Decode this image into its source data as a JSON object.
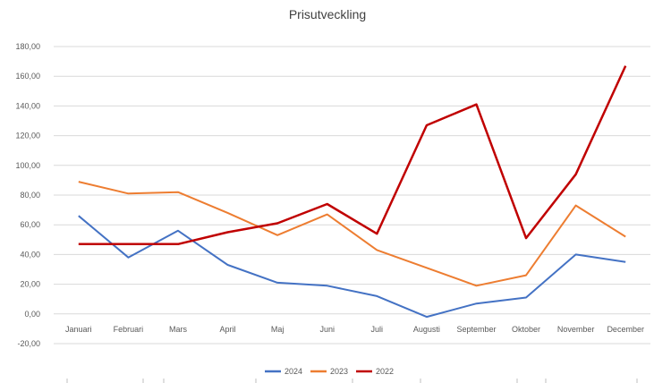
{
  "chart_data": {
    "type": "line",
    "title": "Prisutveckling",
    "categories": [
      "Januari",
      "Februari",
      "Mars",
      "April",
      "Maj",
      "Juni",
      "Juli",
      "Augusti",
      "September",
      "Oktober",
      "November",
      "December"
    ],
    "series": [
      {
        "name": "2024",
        "color": "#4472C4",
        "values": [
          66,
          38,
          56,
          33,
          21,
          19,
          12,
          -2,
          7,
          11,
          40,
          35
        ]
      },
      {
        "name": "2023",
        "color": "#ED7D31",
        "values": [
          89,
          81,
          82,
          68,
          53,
          67,
          43,
          31,
          19,
          26,
          73,
          52
        ]
      },
      {
        "name": "2022",
        "color": "#C00000",
        "values": [
          47,
          47,
          47,
          55,
          61,
          74,
          54,
          127,
          141,
          51,
          94,
          167
        ]
      }
    ],
    "yticks": [
      "180,00",
      "160,00",
      "140,00",
      "120,00",
      "100,00",
      "80,00",
      "60,00",
      "40,00",
      "20,00",
      "0,00",
      "-20,00"
    ],
    "ylim": [
      -20,
      180
    ],
    "ystep": 20,
    "grid": true,
    "legend_position": "bottom"
  }
}
